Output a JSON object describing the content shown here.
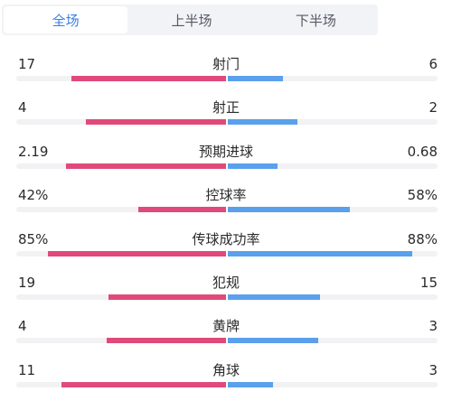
{
  "tabs": [
    "全场",
    "上半场",
    "下半场"
  ],
  "colors": {
    "home": "#e04a7a",
    "away": "#5aa0ec",
    "active_tab": "#3a7ee0"
  },
  "stats": [
    {
      "label": "射门",
      "home": "17",
      "away": "6",
      "home_fraction": 0.738,
      "away_fraction": 0.262
    },
    {
      "label": "射正",
      "home": "4",
      "away": "2",
      "home_fraction": 0.667,
      "away_fraction": 0.333
    },
    {
      "label": "预期进球",
      "home": "2.19",
      "away": "0.68",
      "home_fraction": 0.763,
      "away_fraction": 0.237
    },
    {
      "label": "控球率",
      "home": "42%",
      "away": "58%",
      "home_fraction": 0.42,
      "away_fraction": 0.58
    },
    {
      "label": "传球成功率",
      "home": "85%",
      "away": "88%",
      "home_fraction": 0.85,
      "away_fraction": 0.88
    },
    {
      "label": "犯规",
      "home": "19",
      "away": "15",
      "home_fraction": 0.559,
      "away_fraction": 0.441
    },
    {
      "label": "黄牌",
      "home": "4",
      "away": "3",
      "home_fraction": 0.571,
      "away_fraction": 0.429
    },
    {
      "label": "角球",
      "home": "11",
      "away": "3",
      "home_fraction": 0.786,
      "away_fraction": 0.214
    }
  ]
}
